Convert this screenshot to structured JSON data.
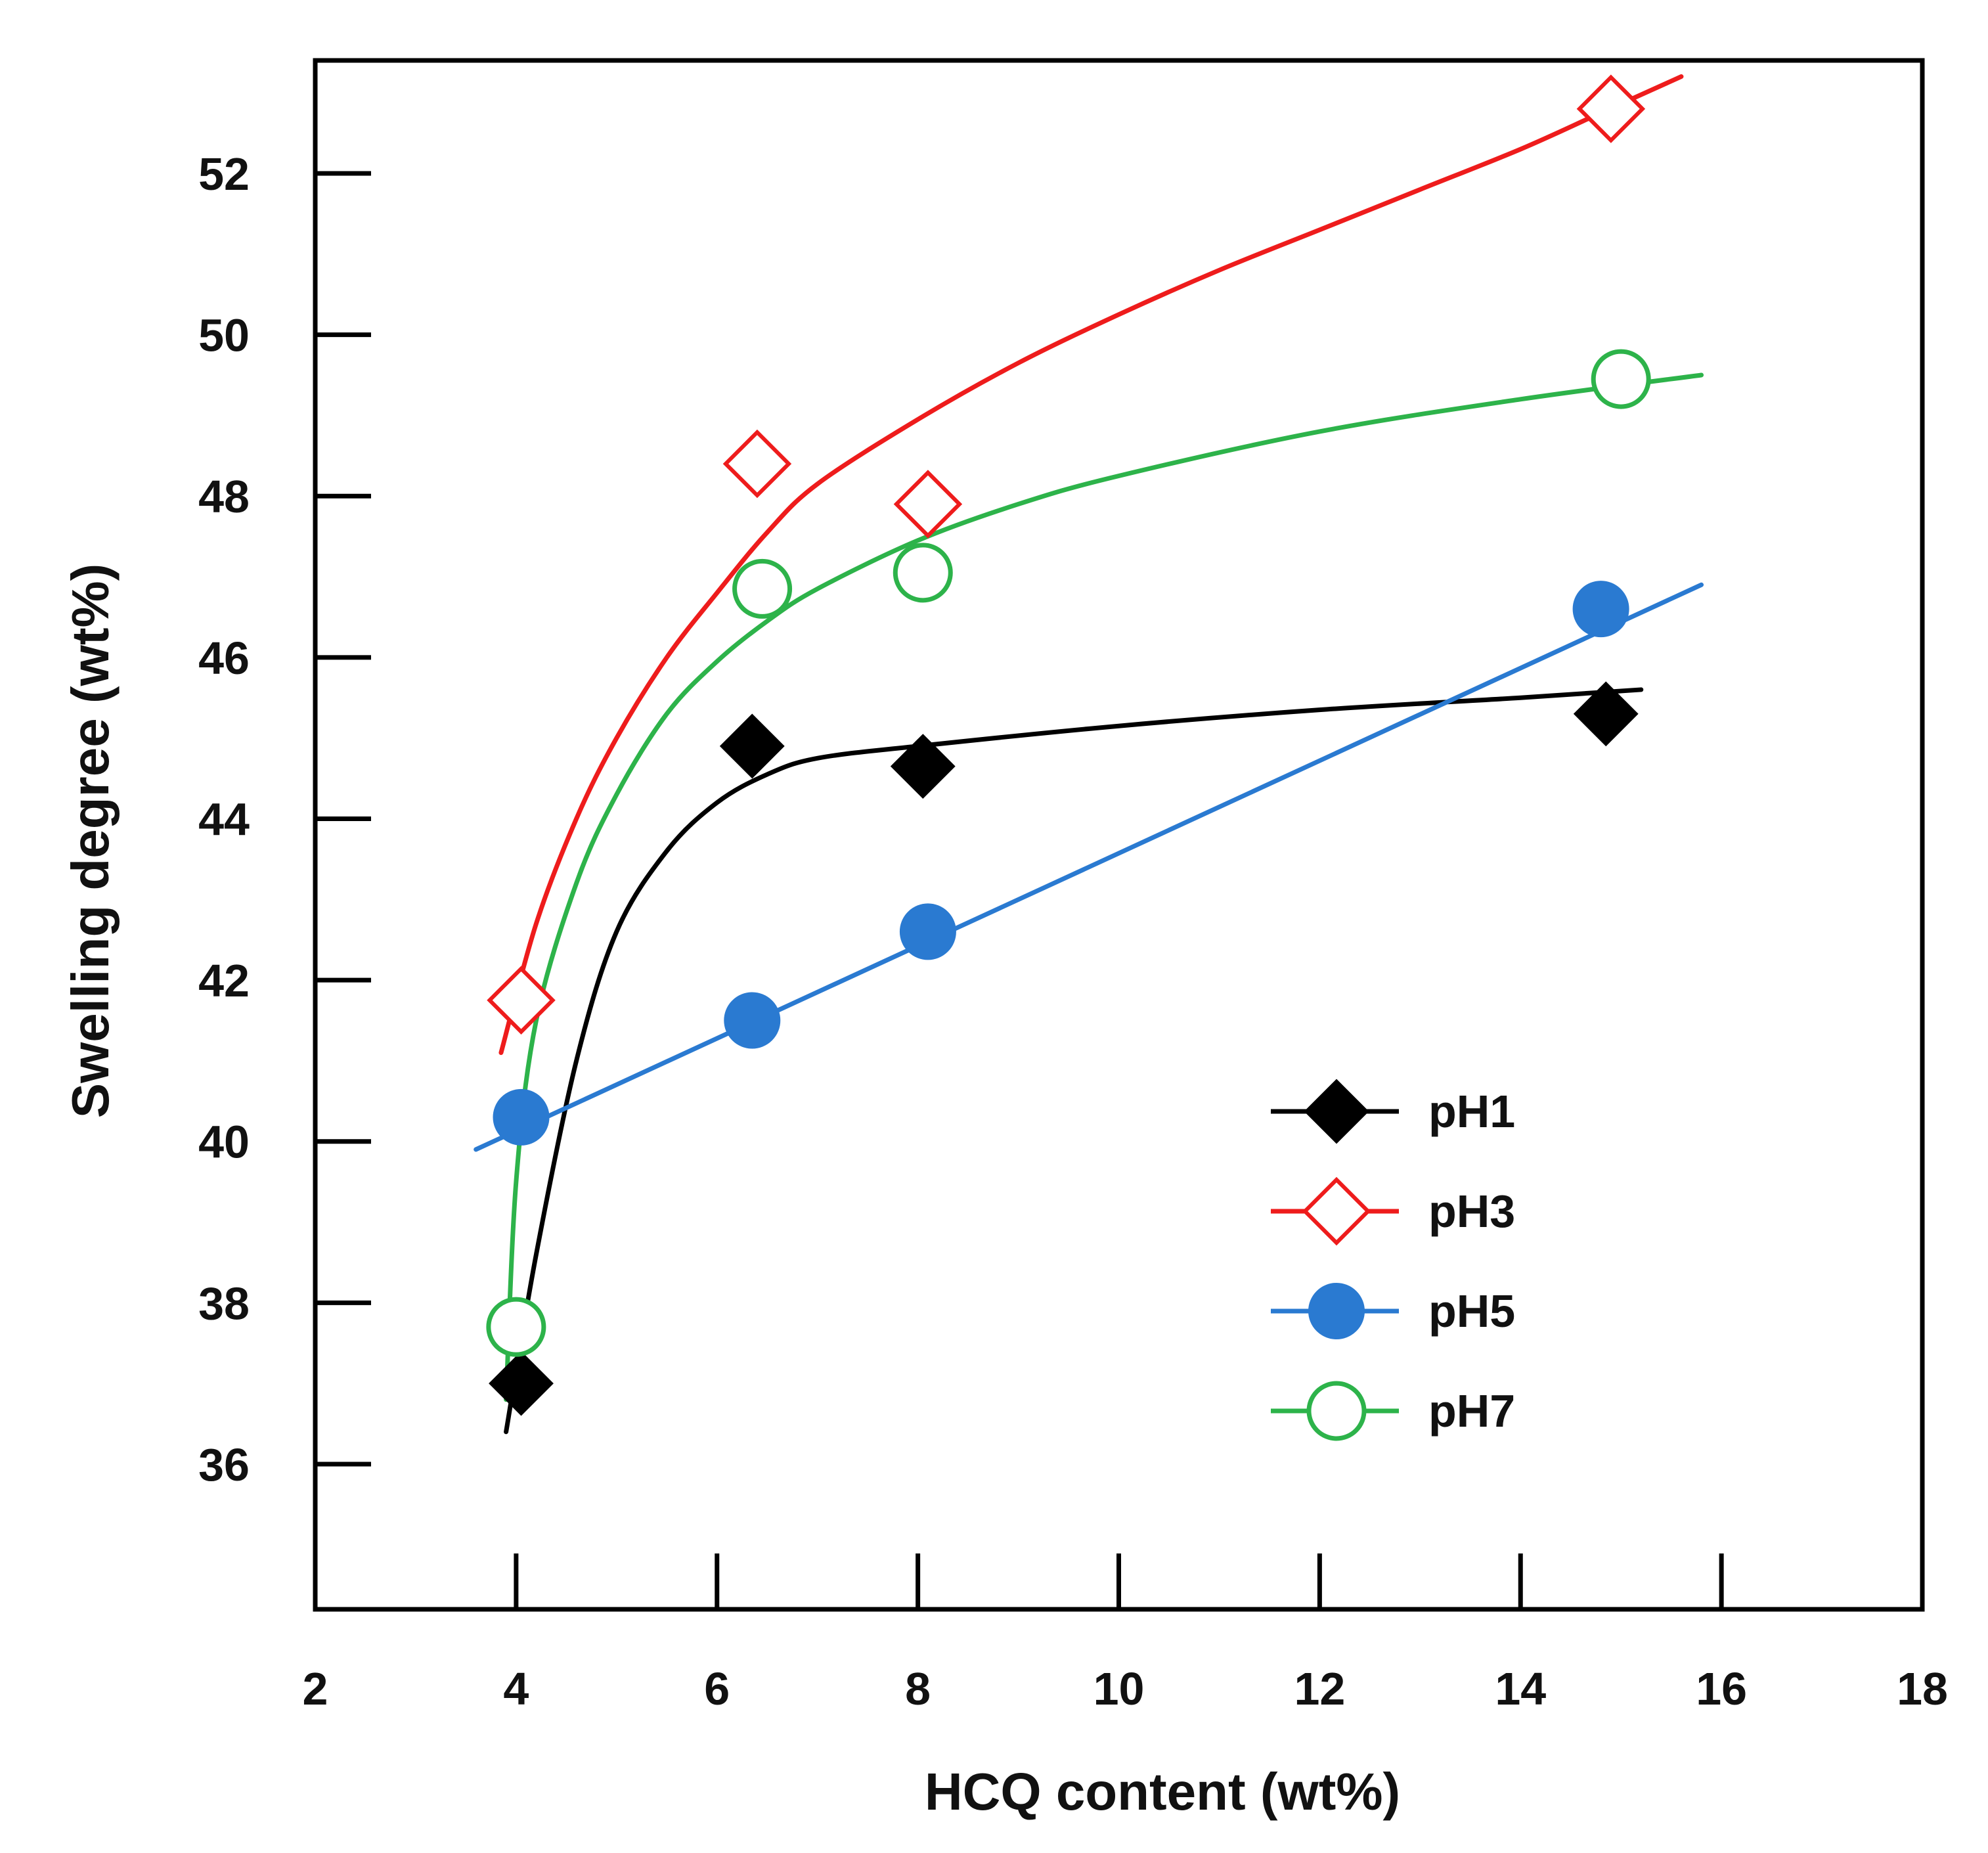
{
  "chart_data": {
    "type": "line",
    "xlabel": "HCQ content (wt%)",
    "ylabel": "Swelling degree (wt%)",
    "xlim": [
      2,
      18
    ],
    "ylim": [
      34.2,
      53.4
    ],
    "x_ticks": [
      2,
      4,
      6,
      8,
      10,
      12,
      14,
      16,
      18
    ],
    "y_ticks": [
      36,
      38,
      40,
      42,
      44,
      46,
      48,
      50,
      52
    ],
    "grid": false,
    "legend_position": "lower-right",
    "series": [
      {
        "name": "pH1",
        "color": "#000000",
        "marker": "diamond-filled",
        "points": [
          [
            4.05,
            37.0
          ],
          [
            6.35,
            44.9
          ],
          [
            8.05,
            44.65
          ],
          [
            14.85,
            45.3
          ]
        ],
        "fit_curve": [
          [
            3.9,
            36.4
          ],
          [
            4.2,
            38.6
          ],
          [
            4.6,
            41.0
          ],
          [
            5.0,
            42.6
          ],
          [
            5.5,
            43.6
          ],
          [
            6.0,
            44.2
          ],
          [
            6.5,
            44.55
          ],
          [
            7.0,
            44.75
          ],
          [
            8.0,
            44.9
          ],
          [
            10.0,
            45.15
          ],
          [
            12.0,
            45.35
          ],
          [
            14.0,
            45.5
          ],
          [
            15.2,
            45.6
          ]
        ]
      },
      {
        "name": "pH3",
        "color": "#ee1c1c",
        "marker": "diamond-open",
        "points": [
          [
            4.05,
            41.75
          ],
          [
            6.4,
            48.4
          ],
          [
            8.1,
            47.9
          ],
          [
            14.9,
            52.8
          ]
        ],
        "fit_curve": [
          [
            3.85,
            41.1
          ],
          [
            4.2,
            42.7
          ],
          [
            4.6,
            44.0
          ],
          [
            5.0,
            45.0
          ],
          [
            5.5,
            46.0
          ],
          [
            6.0,
            46.8
          ],
          [
            6.5,
            47.55
          ],
          [
            7.0,
            48.15
          ],
          [
            8.0,
            48.95
          ],
          [
            9.0,
            49.65
          ],
          [
            10.0,
            50.25
          ],
          [
            11.0,
            50.8
          ],
          [
            12.0,
            51.3
          ],
          [
            13.0,
            51.8
          ],
          [
            14.0,
            52.3
          ],
          [
            14.8,
            52.75
          ],
          [
            15.6,
            53.2
          ]
        ]
      },
      {
        "name": "pH5",
        "color": "#2a7ad1",
        "marker": "circle-filled",
        "points": [
          [
            4.05,
            40.3
          ],
          [
            6.35,
            41.5
          ],
          [
            8.1,
            42.6
          ],
          [
            14.8,
            46.6
          ]
        ],
        "fit_curve": [
          [
            3.6,
            39.9
          ],
          [
            15.8,
            46.9
          ]
        ]
      },
      {
        "name": "pH7",
        "color": "#2db34a",
        "marker": "circle-open",
        "points": [
          [
            4.0,
            37.7
          ],
          [
            6.45,
            46.85
          ],
          [
            8.05,
            47.05
          ],
          [
            15.0,
            49.45
          ]
        ],
        "fit_curve": [
          [
            3.9,
            36.8
          ],
          [
            4.0,
            39.5
          ],
          [
            4.2,
            41.5
          ],
          [
            4.6,
            43.2
          ],
          [
            5.0,
            44.3
          ],
          [
            5.5,
            45.3
          ],
          [
            6.0,
            45.95
          ],
          [
            6.5,
            46.45
          ],
          [
            7.0,
            46.85
          ],
          [
            8.0,
            47.45
          ],
          [
            9.0,
            47.9
          ],
          [
            10.0,
            48.25
          ],
          [
            12.0,
            48.8
          ],
          [
            14.0,
            49.2
          ],
          [
            15.8,
            49.5
          ]
        ]
      }
    ]
  }
}
